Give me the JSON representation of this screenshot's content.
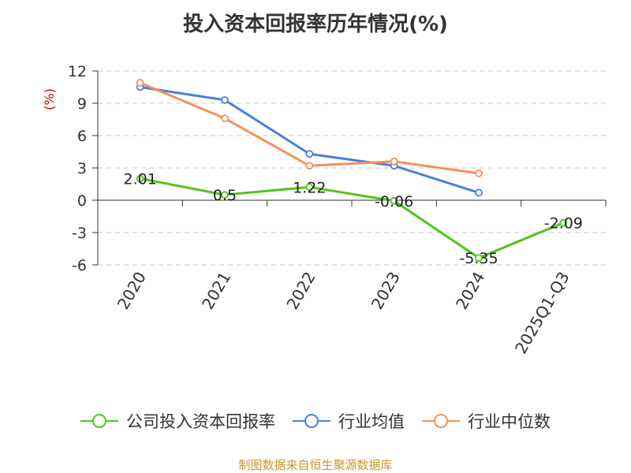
{
  "chart_data": {
    "type": "line",
    "title": "投入资本回报率历年情况(%)",
    "ylabel": "(%)",
    "categories": [
      "2020",
      "2021",
      "2022",
      "2023",
      "2024",
      "2025Q1-Q3"
    ],
    "ylim": [
      -6,
      12
    ],
    "yticks": [
      12,
      9,
      6,
      3,
      0,
      -3,
      -6
    ],
    "ytick_labels": [
      "12",
      "9",
      "6",
      "3",
      "0",
      "-3",
      "-6"
    ],
    "grid": true,
    "legend_position": "bottom",
    "series": [
      {
        "name": "公司投入资本回报率",
        "color": "#52c41a",
        "values": [
          2.01,
          0.5,
          1.22,
          -0.06,
          -5.35,
          -2.09
        ],
        "labels": [
          "2.01",
          "0.5",
          "1.22",
          "-0.06",
          "-5.35",
          "-2.09"
        ]
      },
      {
        "name": "行业均值",
        "color": "#4a7fdc",
        "values": [
          10.5,
          9.3,
          4.3,
          3.2,
          0.7,
          null
        ]
      },
      {
        "name": "行业中位数",
        "color": "#f5915a",
        "values": [
          10.9,
          7.6,
          3.2,
          3.6,
          2.5,
          null
        ]
      }
    ]
  },
  "source": "制图数据来自恒生聚源数据库"
}
